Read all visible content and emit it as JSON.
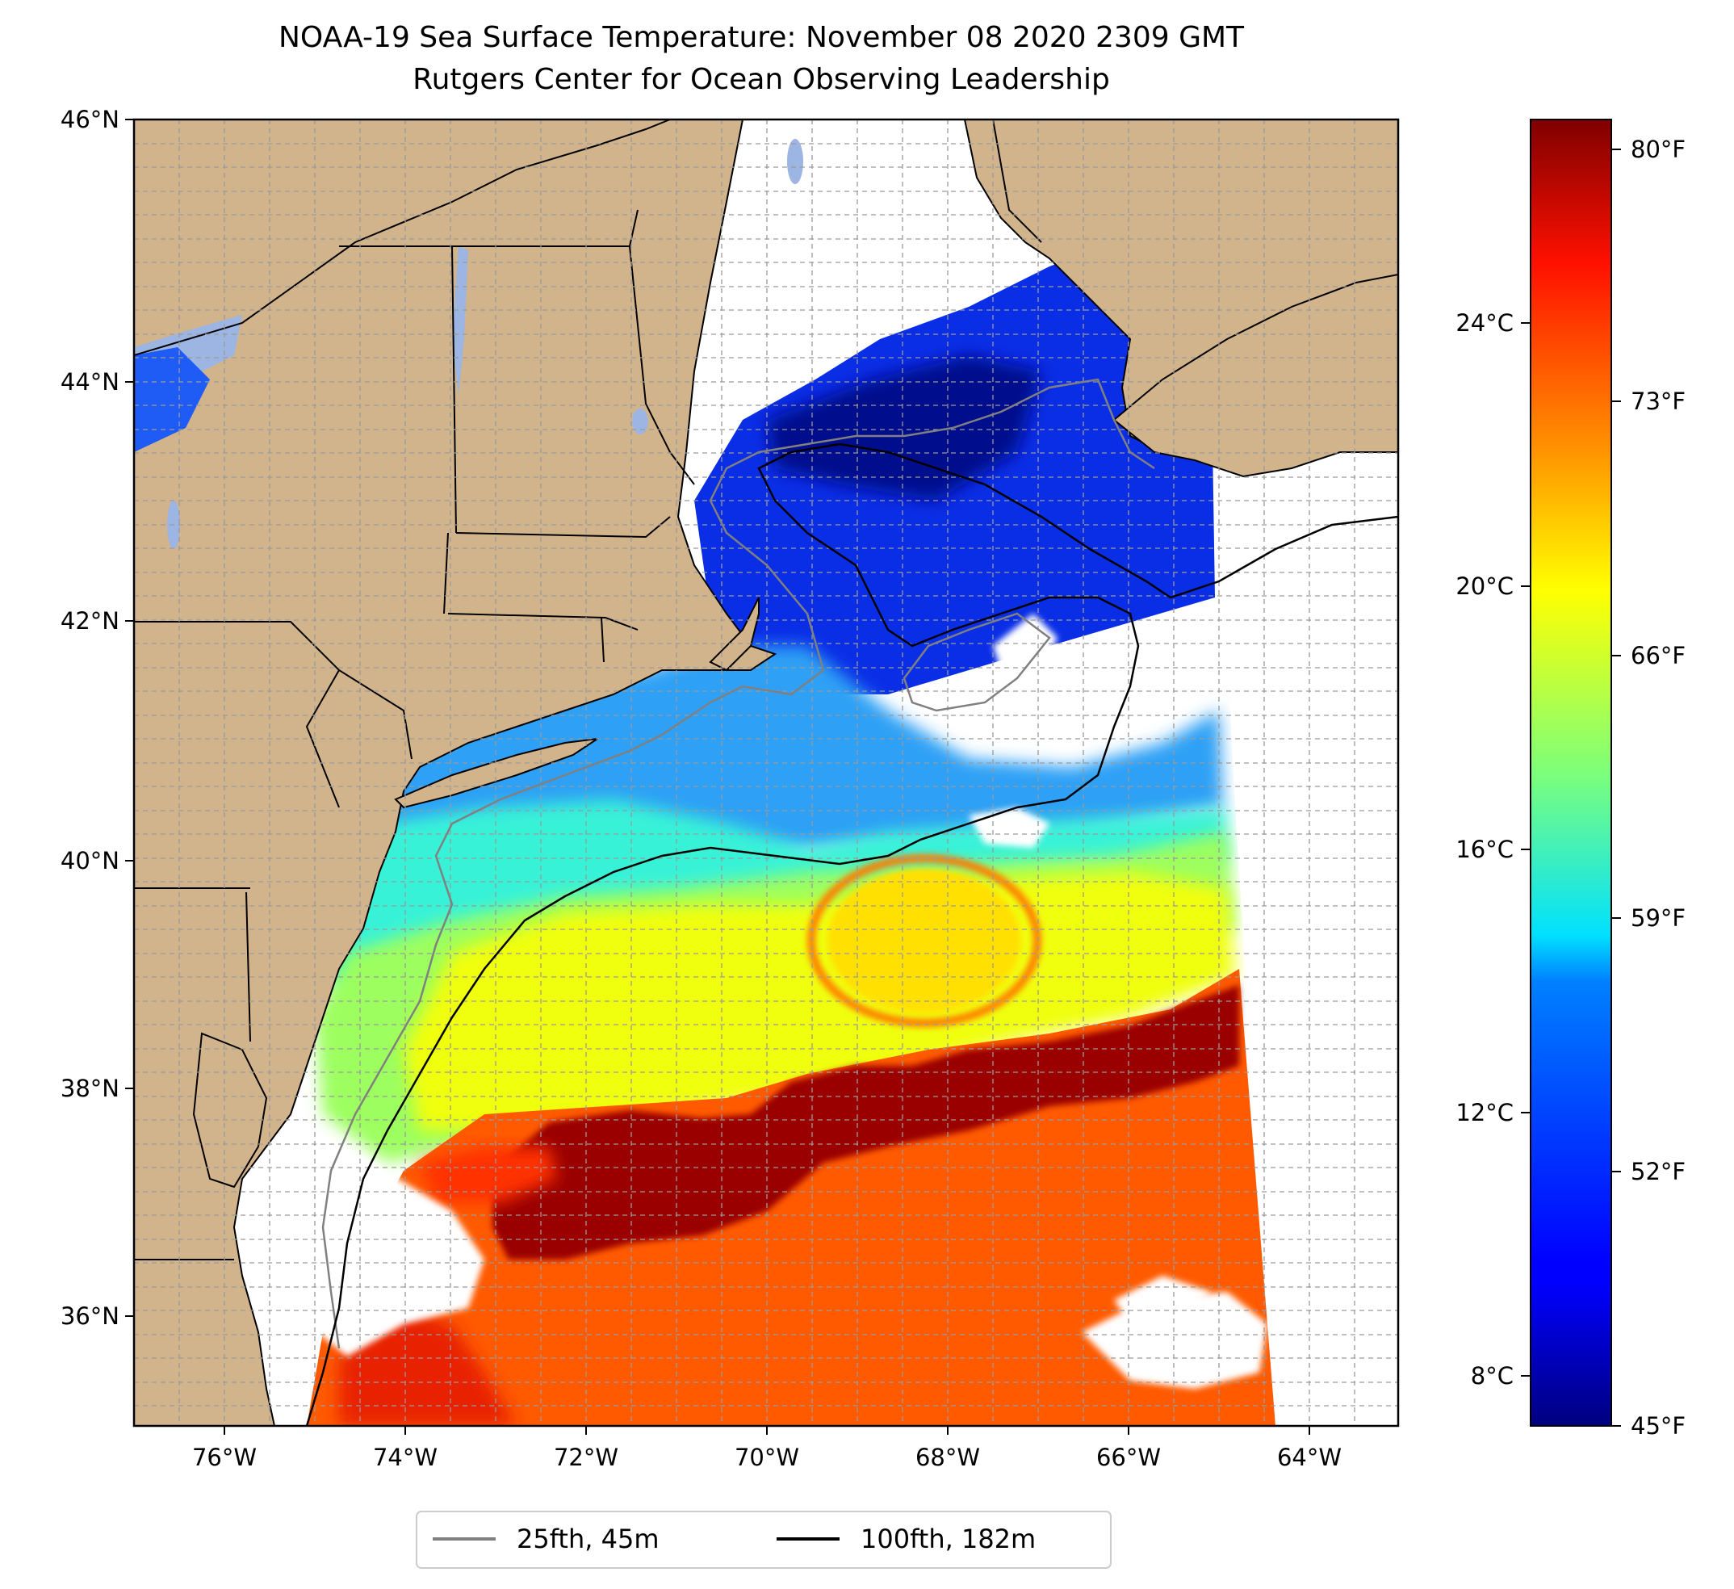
{
  "title": {
    "line1": "NOAA-19 Sea Surface Temperature: November 08 2020 2309 GMT",
    "line2": "Rutgers Center for Ocean Observing Leadership"
  },
  "map": {
    "lon_range": [
      -77,
      -63
    ],
    "lat_range": [
      35.1,
      46
    ],
    "lon_ticks": [
      "76°W",
      "74°W",
      "72°W",
      "70°W",
      "68°W",
      "66°W",
      "64°W"
    ],
    "lat_ticks": [
      "46°N",
      "44°N",
      "42°N",
      "40°N",
      "38°N",
      "36°N"
    ],
    "gridlines": true,
    "colors": {
      "land": "#d2b48c",
      "lakes": "#9db5e2",
      "no_data": "#ffffff",
      "isobath_25fth": "#808080",
      "isobath_100fth": "#000000"
    }
  },
  "colorbar": {
    "colormap": "jet",
    "celsius_labels": [
      "24°C",
      "20°C",
      "16°C",
      "12°C",
      "8°C"
    ],
    "fahrenheit_labels": [
      "80°F",
      "73°F",
      "66°F",
      "59°F",
      "52°F",
      "45°F"
    ],
    "range_f": [
      45,
      81
    ]
  },
  "legend": {
    "placement": "bottom-center",
    "items": [
      {
        "label": "25fth, 45m",
        "color": "#808080"
      },
      {
        "label": "100fth, 182m",
        "color": "#000000"
      }
    ]
  }
}
